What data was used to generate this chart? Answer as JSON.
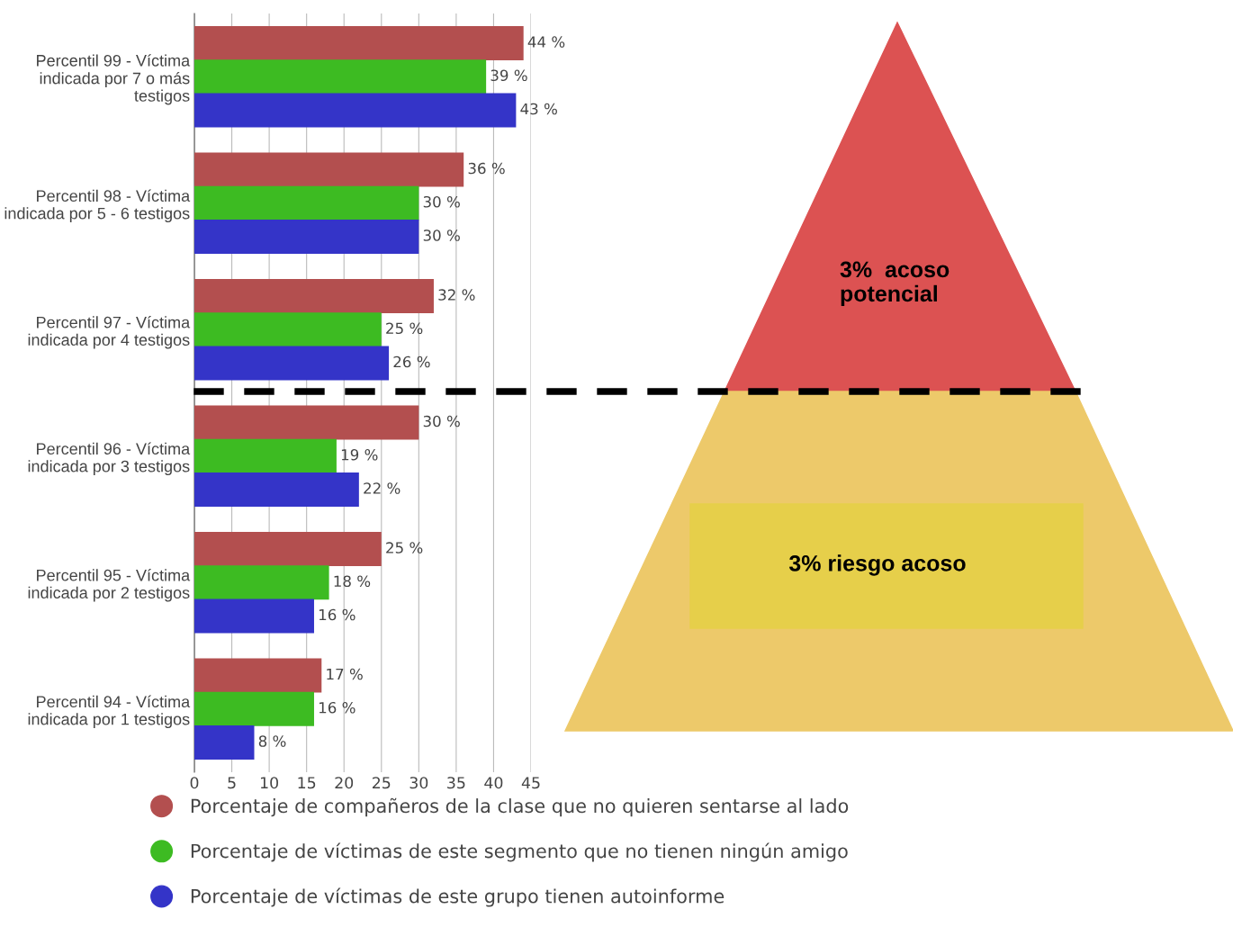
{
  "chart_data": {
    "type": "bar",
    "orientation": "horizontal",
    "categories": [
      "Percentil 99 - Víctima\nindicada por 7 o más\ntestigos",
      "Percentil 98 - Víctima\nindicada por 5 - 6 testigos",
      "Percentil 97 - Víctima\nindicada por 4 testigos",
      "Percentil 96 - Víctima\nindicada por 3 testigos",
      "Percentil 95 - Víctima\nindicada por 2 testigos",
      "Percentil 94 - Víctima\nindicada por 1 testigos"
    ],
    "series": [
      {
        "name": "Porcentaje de compañeros de la clase que no quieren sentarse al lado",
        "color": "#b34f4f",
        "values": [
          44,
          36,
          32,
          30,
          25,
          17
        ],
        "value_labels": [
          "44 %",
          "36 %",
          "32 %",
          "30 %",
          "25 %",
          "17 %"
        ]
      },
      {
        "name": "Porcentaje de víctimas de este segmento que no tienen ningún amigo",
        "color": "#3dbb22",
        "values": [
          39,
          30,
          25,
          19,
          18,
          16
        ],
        "value_labels": [
          "39 %",
          "30 %",
          "25 %",
          "19 %",
          "18 %",
          "16 %"
        ]
      },
      {
        "name": "Porcentaje de víctimas de este grupo tienen autoinforme",
        "color": "#3434c8",
        "values": [
          43,
          30,
          26,
          22,
          16,
          8
        ],
        "value_labels": [
          "43 %",
          "30 %",
          "26 %",
          "22 %",
          "16 %",
          "8 %"
        ]
      }
    ],
    "xlim": [
      0,
      45
    ],
    "xticks": [
      0,
      5,
      10,
      15,
      20,
      25,
      30,
      35,
      40,
      45
    ],
    "grid": "x",
    "legend": "bottom",
    "annotations": [
      "3%  acoso\npotencial",
      "3% riesgo acoso"
    ]
  }
}
